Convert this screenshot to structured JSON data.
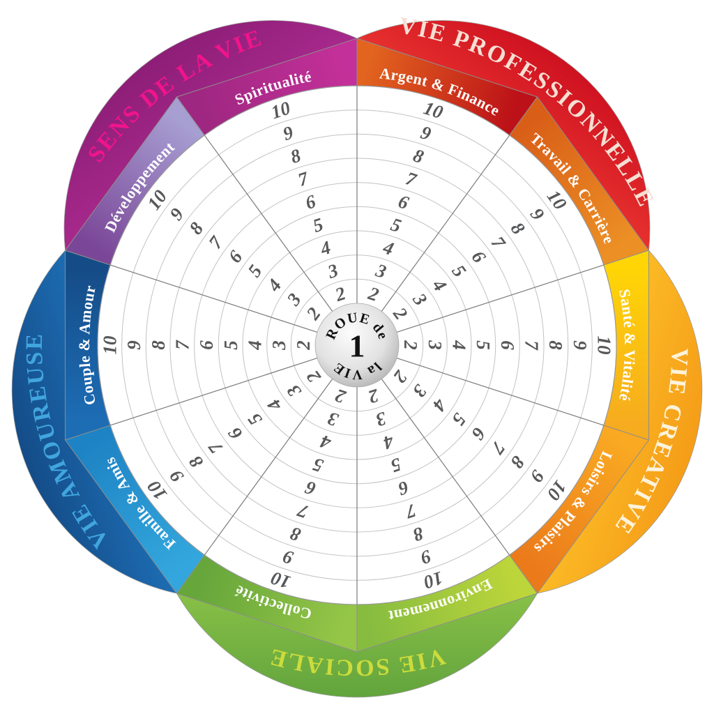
{
  "page": {
    "background": "#FFFFFF"
  },
  "wheel": {
    "center_badge": {
      "top": "ROUE de",
      "value": "1",
      "bottom": "la VIE",
      "text_color": "#111111",
      "fill_stops": [
        "#FCFCFC",
        "#E2E2E2",
        "#A4A4A4"
      ],
      "rim_color": "#ABABAB"
    },
    "scale_ticks": [
      "2",
      "3",
      "4",
      "5",
      "6",
      "7",
      "8",
      "9",
      "10"
    ],
    "tick_color": "#57585A",
    "grid": {
      "fill": "#FFFFFF",
      "ring_color": "#C2C2C2",
      "spoke_color": "#7A7A7A",
      "outer_circle_color": "#999999",
      "band_edge_color": "#8E8E8E",
      "petal_edge_color": "#9B9B9B"
    },
    "petals": [
      {
        "name": "vie-professionnelle",
        "label": "VIE PROFESSIONNELLE",
        "label_color": "#F6DFD3",
        "gradient": [
          "#E93430",
          "#CE1120"
        ],
        "segments": [
          {
            "name": "argent-finance",
            "label": "Argent & Finance",
            "label_color": "#FFFFFF",
            "gradient": [
              "#E2641F",
              "#BC1118"
            ]
          },
          {
            "name": "travail-carriere",
            "label": "Travail & Carrière",
            "label_color": "#FFFFFF",
            "gradient": [
              "#D95F18",
              "#EC9025"
            ]
          }
        ]
      },
      {
        "name": "vie-creative",
        "label": "VIE CREATIVE",
        "label_color": "#FDF3DC",
        "gradient": [
          "#FCBD27",
          "#F59D18"
        ],
        "segments": [
          {
            "name": "sante-vitalite",
            "label": "Santé & Vitalité",
            "label_color": "#FFFFFF",
            "gradient": [
              "#FFD506",
              "#F6AC1E"
            ]
          },
          {
            "name": "loisirs-plaisirs",
            "label": "Loisirs & Plaisirs",
            "label_color": "#FFFFFF",
            "gradient": [
              "#F9A922",
              "#EB7A1B"
            ]
          }
        ]
      },
      {
        "name": "vie-sociale",
        "label": "VIE SOCIALE",
        "label_color": "#CCDC3C",
        "gradient": [
          "#8CC348",
          "#62A43D"
        ],
        "segments": [
          {
            "name": "environnement",
            "label": "Environnement",
            "label_color": "#FFFFFF",
            "gradient": [
              "#BCD53A",
              "#86BC40"
            ]
          },
          {
            "name": "collectivite",
            "label": "Collectivité",
            "label_color": "#FFFFFF",
            "gradient": [
              "#95C647",
              "#66A63B"
            ]
          }
        ]
      },
      {
        "name": "vie-amoureuse",
        "label": "VIE AMOUREUSE",
        "label_color": "#41A5DE",
        "gradient": [
          "#1E70B7",
          "#144C88"
        ],
        "segments": [
          {
            "name": "famille-amis",
            "label": "Famille & Amis",
            "label_color": "#FFFFFF",
            "gradient": [
              "#33A7DD",
              "#1E83C4"
            ]
          },
          {
            "name": "couple-amour",
            "label": "Couple & Amour",
            "label_color": "#FFFFFF",
            "gradient": [
              "#1D6DB5",
              "#154C87"
            ]
          }
        ]
      },
      {
        "name": "sens-de-la-vie",
        "label": "SENS DE LA VIE",
        "label_color": "#F0148B",
        "gradient": [
          "#AA2A8E",
          "#8D1E77"
        ],
        "segments": [
          {
            "name": "developpement",
            "label": "Développement",
            "label_color": "#FFFFFF",
            "gradient": [
              "#7A4697",
              "#A79ED2"
            ]
          },
          {
            "name": "spiritualite",
            "label": "Spiritualité",
            "label_color": "#FFFFFF",
            "gradient": [
              "#9E2781",
              "#C43099"
            ]
          }
        ]
      }
    ]
  }
}
